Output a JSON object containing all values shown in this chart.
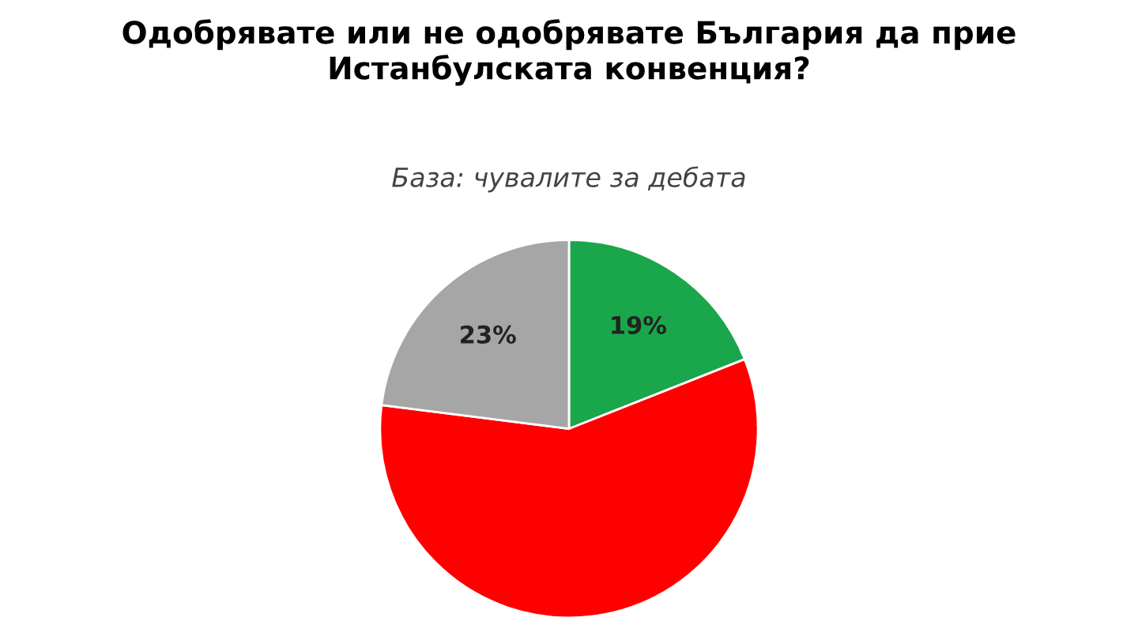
{
  "chart_data": {
    "type": "pie",
    "title": "Одобрявате или не одобрявате България да прие\nИстанбулската конвенция?",
    "subtitle": "База: чувалите за дебата",
    "categories": [
      null,
      null,
      null
    ],
    "values": [
      19,
      58,
      23
    ],
    "value_labels": [
      "19%",
      null,
      "23%"
    ],
    "colors": [
      "#1aa64a",
      "#ff0000",
      "#a6a6a6"
    ]
  }
}
